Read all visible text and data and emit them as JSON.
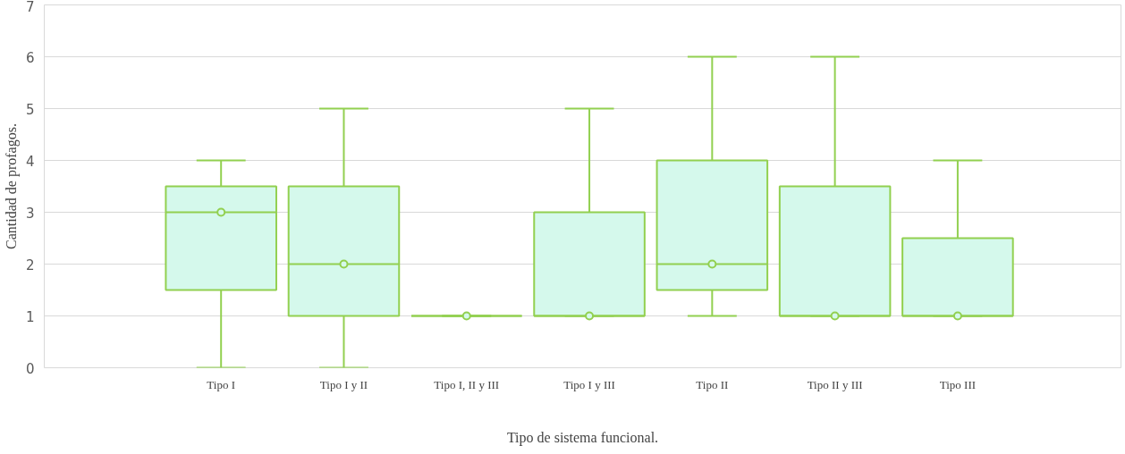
{
  "chart_data": {
    "type": "box",
    "xlabel": "Tipo de sistema funcional.",
    "ylabel": "Cantidad de profagos.",
    "categories": [
      "Tipo I",
      "Tipo I y II",
      "Tipo I, II y III",
      "Tipo I y III",
      "Tipo II",
      "Tipo II y III",
      "Tipo III"
    ],
    "boxes": [
      {
        "low": 0,
        "q1": 1.5,
        "median": 3,
        "q3": 3.5,
        "high": 4,
        "mean": 3
      },
      {
        "low": 0,
        "q1": 1,
        "median": 2,
        "q3": 3.5,
        "high": 5,
        "mean": 2
      },
      {
        "low": 1,
        "q1": 1,
        "median": 1,
        "q3": 1,
        "high": 1,
        "mean": 1
      },
      {
        "low": 1,
        "q1": 1,
        "median": 1,
        "q3": 3,
        "high": 5,
        "mean": 1
      },
      {
        "low": 1,
        "q1": 1.5,
        "median": 2,
        "q3": 4,
        "high": 6,
        "mean": 2
      },
      {
        "low": 1,
        "q1": 1,
        "median": 1,
        "q3": 3.5,
        "high": 6,
        "mean": 1
      },
      {
        "low": 1,
        "q1": 1,
        "median": 1,
        "q3": 2.5,
        "high": 4,
        "mean": 1
      }
    ],
    "color": "#92d050",
    "ylim": [
      0,
      7
    ],
    "yticks": [
      0,
      1,
      2,
      3,
      4,
      5,
      6,
      7
    ],
    "grid": "y"
  }
}
